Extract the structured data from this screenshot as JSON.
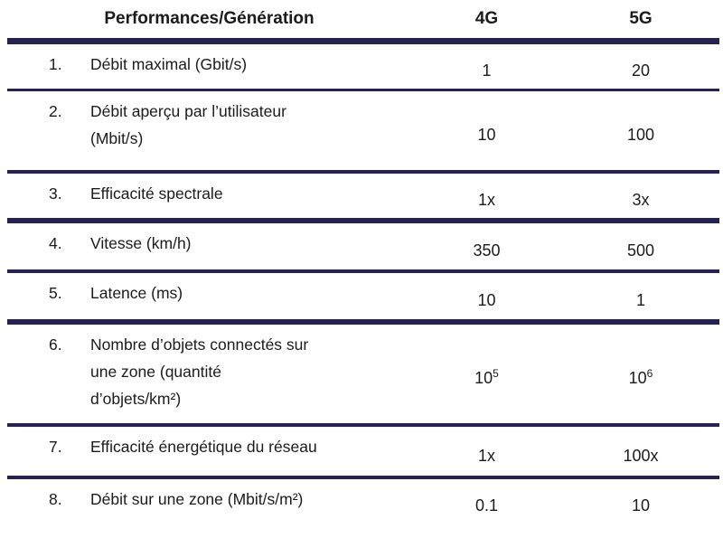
{
  "chart_data": {
    "type": "table",
    "columns": [
      "Performances/Génération",
      "4G",
      "5G"
    ],
    "rows": [
      {
        "num": "1.",
        "label": "Débit maximal (Gbit/s)",
        "g4": "1",
        "g5": "20"
      },
      {
        "num": "2.",
        "label": "Débit aperçu par l’utilisateur\n(Mbit/s)",
        "g4": "10",
        "g5": "100"
      },
      {
        "num": "3.",
        "label": "Efficacité spectrale",
        "g4": "1x",
        "g5": "3x"
      },
      {
        "num": "4.",
        "label": "Vitesse (km/h)",
        "g4": "350",
        "g5": "500"
      },
      {
        "num": "5.",
        "label": "Latence (ms)",
        "g4": "10",
        "g5": "1"
      },
      {
        "num": "6.",
        "label": "Nombre d’objets connectés sur\nune zone (quantité\nd’objets/km²)",
        "g4": "10",
        "g4_sup": "5",
        "g5": "10",
        "g5_sup": "6"
      },
      {
        "num": "7.",
        "label": "Efficacité énergétique du réseau",
        "g4": "1x",
        "g5": "100x"
      },
      {
        "num": "8.",
        "label": "Débit sur une zone (Mbit/s/m²)",
        "g4": "0.1",
        "g5": "10"
      }
    ],
    "colors": {
      "rule": "#272350",
      "text": "#1b1b1b"
    }
  }
}
